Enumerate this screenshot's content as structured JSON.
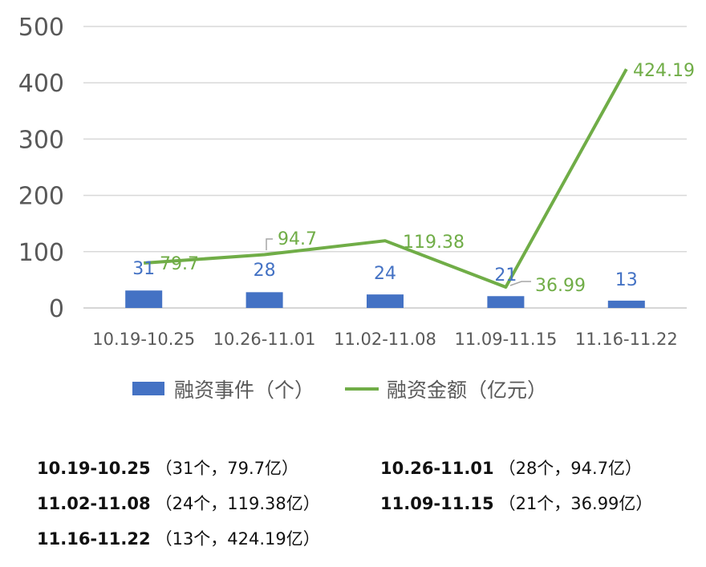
{
  "chart_data": {
    "type": "bar+line",
    "categories": [
      "10.19-10.25",
      "10.26-11.01",
      "11.02-11.08",
      "11.09-11.15",
      "11.16-11.22"
    ],
    "series": [
      {
        "name": "融资事件（个）",
        "type": "bar",
        "values": [
          31,
          28,
          24,
          21,
          13
        ],
        "color": "#4472C4"
      },
      {
        "name": "融资金额（亿元）",
        "type": "line",
        "values": [
          79.7,
          94.7,
          119.38,
          36.99,
          424.19
        ],
        "color": "#70AD47"
      }
    ],
    "bar_labels": [
      "31",
      "28",
      "24",
      "21",
      "13"
    ],
    "line_labels": [
      "79.7",
      "94.7",
      "119.38",
      "36.99",
      "424.19"
    ],
    "ylim": [
      0,
      500
    ],
    "yticks": [
      "0",
      "100",
      "200",
      "300",
      "400",
      "500"
    ],
    "grid": true,
    "legend_position": "bottom"
  },
  "summary": [
    {
      "range": "10.19-10.25",
      "detail": "（31个，79.7亿）"
    },
    {
      "range": "10.26-11.01",
      "detail": "（28个，94.7亿）"
    },
    {
      "range": "11.02-11.08",
      "detail": "（24个，119.38亿）"
    },
    {
      "range": "11.09-11.15",
      "detail": "（21个，36.99亿）"
    },
    {
      "range": "11.16-11.22",
      "detail": "（13个，424.19亿）"
    }
  ]
}
